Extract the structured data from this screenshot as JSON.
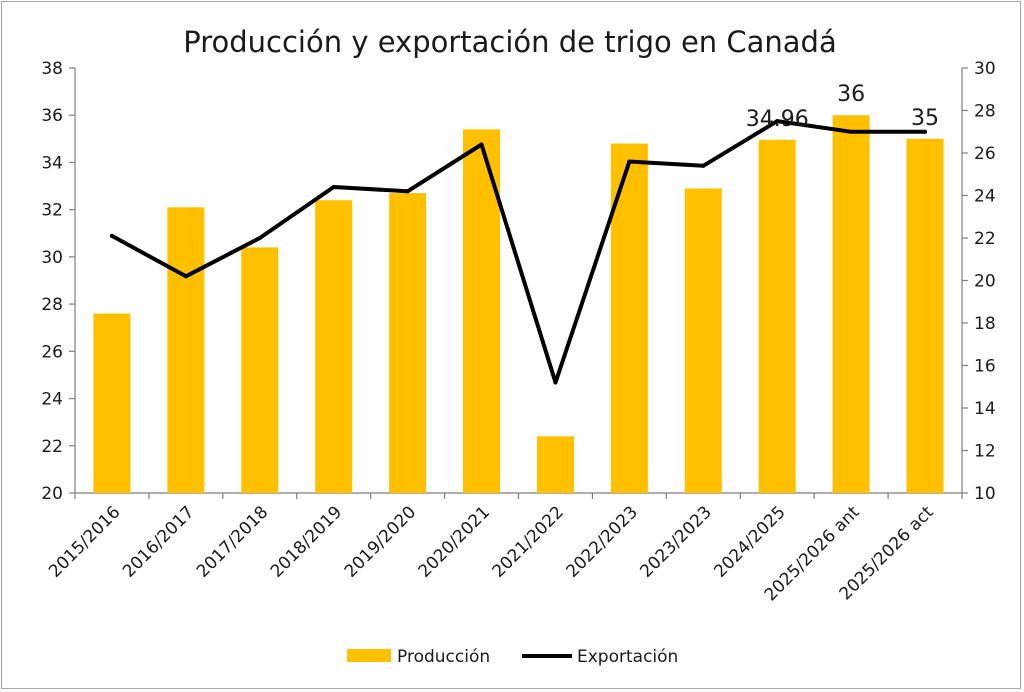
{
  "chart_data": {
    "type": "bar",
    "title": "Producción y exportación de trigo en Canadá",
    "categories": [
      "2015/2016",
      "2016/2017",
      "2017/2018",
      "2018/2019",
      "2019/2020",
      "2020/2021",
      "2021/2022",
      "2022/2023",
      "2023/2023",
      "2024/2025",
      "2025/2026 ant",
      "2025/2026 act"
    ],
    "series": [
      {
        "name": "Producción",
        "type": "bar",
        "axis": "left",
        "color": "#FFC000",
        "values": [
          27.6,
          32.1,
          30.4,
          32.4,
          32.7,
          35.4,
          22.4,
          34.8,
          32.9,
          34.96,
          36,
          35
        ]
      },
      {
        "name": "Exportación",
        "type": "line",
        "axis": "right",
        "color": "#000000",
        "values": [
          22.1,
          20.2,
          22.0,
          24.4,
          24.2,
          26.4,
          15.2,
          25.6,
          25.4,
          27.5,
          27.0,
          27.0
        ]
      }
    ],
    "data_labels": [
      {
        "category_index": 9,
        "text": "34.96"
      },
      {
        "category_index": 10,
        "text": "36"
      },
      {
        "category_index": 11,
        "text": "35"
      }
    ],
    "y_left": {
      "min": 20,
      "max": 38,
      "step": 2,
      "ticks": [
        "20",
        "22",
        "24",
        "26",
        "28",
        "30",
        "32",
        "34",
        "36",
        "38"
      ]
    },
    "y_right": {
      "min": 10,
      "max": 30,
      "step": 2,
      "ticks": [
        "10",
        "12",
        "14",
        "16",
        "18",
        "20",
        "22",
        "24",
        "26",
        "28",
        "30"
      ]
    },
    "grid": false,
    "legend": {
      "position": "bottom",
      "entries": [
        "Producción",
        "Exportación"
      ]
    }
  }
}
